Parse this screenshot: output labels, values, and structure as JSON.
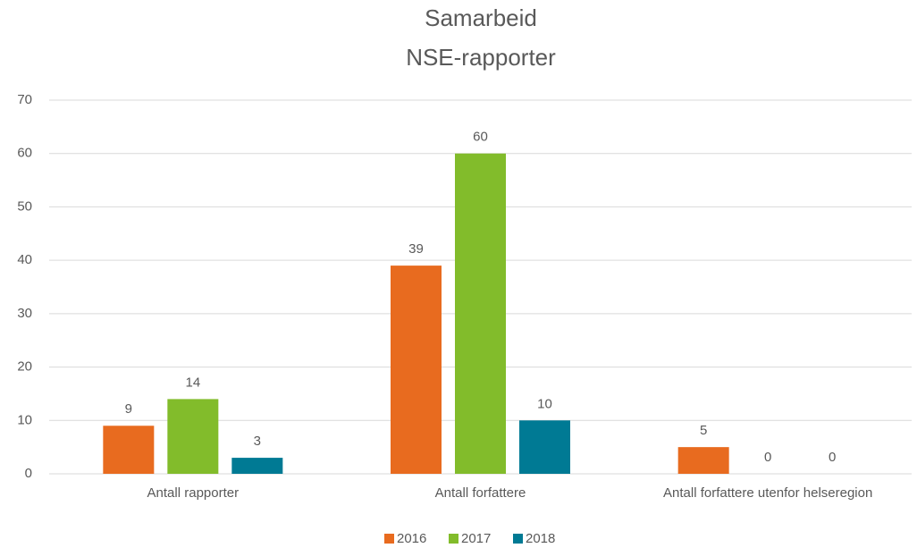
{
  "chart_data": {
    "type": "bar",
    "title": "Samarbeid",
    "subtitle": "NSE-rapporter",
    "categories": [
      "Antall rapporter",
      "Antall forfattere",
      "Antall forfattere utenfor helseregion"
    ],
    "series": [
      {
        "name": "2016",
        "color": "#e86b1f",
        "values": [
          9,
          39,
          5
        ]
      },
      {
        "name": "2017",
        "color": "#82bc2b",
        "values": [
          14,
          60,
          0
        ]
      },
      {
        "name": "2018",
        "color": "#007a94",
        "values": [
          3,
          10,
          0
        ]
      }
    ],
    "ylim": [
      0,
      70
    ],
    "yticks": [
      0,
      10,
      20,
      30,
      40,
      50,
      60,
      70
    ],
    "grid": true,
    "legend": "bottom"
  }
}
